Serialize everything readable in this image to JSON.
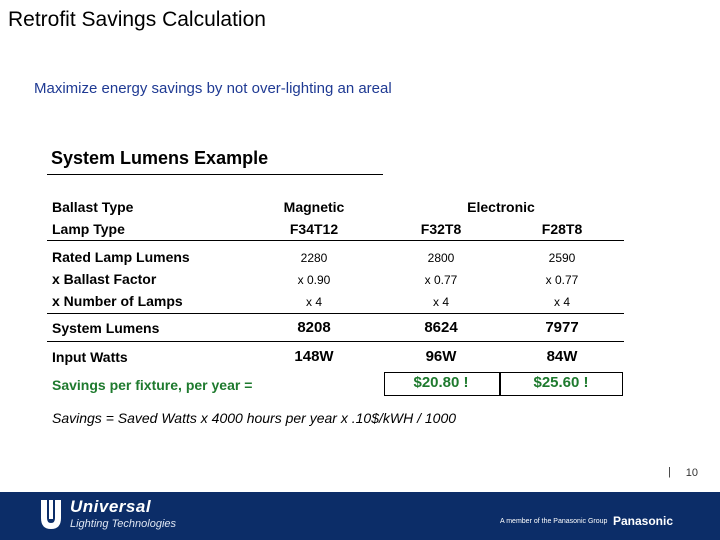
{
  "header": {
    "title": "Retrofit Savings Calculation",
    "subtitle": "Maximize energy savings by not over-lighting an areal"
  },
  "example": {
    "title": "System Lumens Example",
    "labels": {
      "ballast_type": "Ballast Type",
      "lamp_type": "Lamp Type",
      "rated_lumens": "Rated Lamp Lumens",
      "ballast_factor": "x Ballast Factor",
      "num_lamps": "x Number of Lamps",
      "system_lumens": "System Lumens",
      "input_watts": "Input Watts",
      "savings": "Savings per fixture, per year ="
    },
    "ballasts": {
      "magnetic": "Magnetic",
      "electronic": "Electronic"
    },
    "columns": [
      {
        "lamp": "F34T12",
        "rated": "2280",
        "factor": "x 0.90",
        "lamps": "x 4",
        "system": "8208",
        "watts": "148W",
        "savings": ""
      },
      {
        "lamp": "F32T8",
        "rated": "2800",
        "factor": "x 0.77",
        "lamps": "x 4",
        "system": "8624",
        "watts": "96W",
        "savings": "$20.80 !"
      },
      {
        "lamp": "F28T8",
        "rated": "2590",
        "factor": "x 0.77",
        "lamps": "x 4",
        "system": "7977",
        "watts": "84W",
        "savings": "$25.60 !"
      }
    ],
    "formula": "Savings = Saved Watts x 4000 hours per year x .10$/kWH / 1000"
  },
  "page": {
    "separator": "|",
    "number": "10"
  },
  "footer": {
    "logo_line1": "Universal",
    "logo_line2": "Lighting Technologies",
    "member": "A member of the Panasonic Group",
    "brand": "Panasonic"
  }
}
